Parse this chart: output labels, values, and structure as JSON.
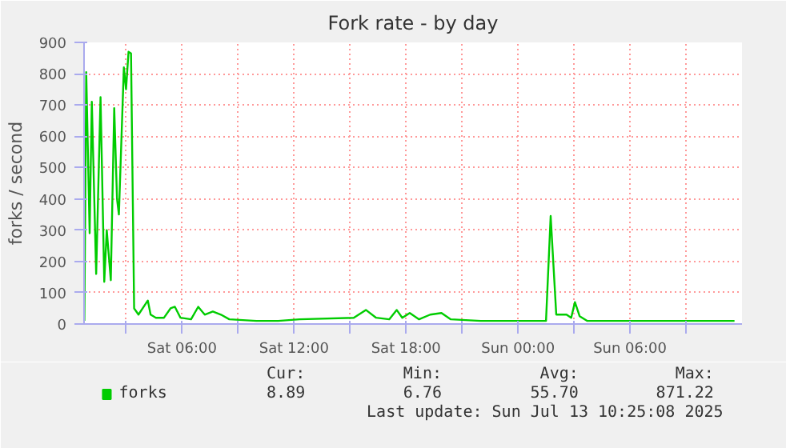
{
  "chart_data": {
    "type": "line",
    "title": "Fork rate - by day",
    "ylabel": "forks / second",
    "x": [
      "2025-07-12T00:46",
      "2025-07-12T00:52",
      "2025-07-12T01:03",
      "2025-07-12T01:10",
      "2025-07-12T01:24",
      "2025-07-12T01:38",
      "2025-07-12T01:50",
      "2025-07-12T01:58",
      "2025-07-12T02:11",
      "2025-07-12T02:22",
      "2025-07-12T02:31",
      "2025-07-12T02:37",
      "2025-07-12T02:53",
      "2025-07-12T03:00",
      "2025-07-12T03:08",
      "2025-07-12T03:16",
      "2025-07-12T03:26",
      "2025-07-12T03:40",
      "2025-07-12T04:10",
      "2025-07-12T04:19",
      "2025-07-12T04:36",
      "2025-07-12T05:02",
      "2025-07-12T05:23",
      "2025-07-12T05:37",
      "2025-07-12T05:55",
      "2025-07-12T06:29",
      "2025-07-12T06:52",
      "2025-07-12T07:13",
      "2025-07-12T07:39",
      "2025-07-12T08:05",
      "2025-07-12T08:32",
      "2025-07-12T09:59",
      "2025-07-12T11:09",
      "2025-07-12T12:18",
      "2025-07-12T15:12",
      "2025-07-12T15:51",
      "2025-07-12T16:24",
      "2025-07-12T17:06",
      "2025-07-12T17:30",
      "2025-07-12T17:48",
      "2025-07-12T18:12",
      "2025-07-12T18:42",
      "2025-07-12T19:18",
      "2025-07-12T19:54",
      "2025-07-12T20:24",
      "2025-07-12T22:00",
      "2025-07-12T23:24",
      "2025-07-13T01:06",
      "2025-07-13T01:30",
      "2025-07-13T01:45",
      "2025-07-13T02:03",
      "2025-07-13T02:36",
      "2025-07-13T02:51",
      "2025-07-13T03:03",
      "2025-07-13T03:18",
      "2025-07-13T03:42",
      "2025-07-13T05:12",
      "2025-07-13T08:06",
      "2025-07-13T10:06",
      "2025-07-13T11:24",
      "2025-07-13T11:36"
    ],
    "series": [
      {
        "name": "forks",
        "color": "#00cc00",
        "values": [
          10,
          805,
          290,
          710,
          160,
          725,
          135,
          300,
          140,
          690,
          400,
          350,
          820,
          750,
          870,
          865,
          50,
          30,
          75,
          30,
          20,
          20,
          50,
          55,
          20,
          15,
          55,
          30,
          40,
          30,
          15,
          10,
          10,
          15,
          20,
          45,
          20,
          15,
          45,
          20,
          35,
          15,
          30,
          35,
          15,
          10,
          10,
          10,
          10,
          345,
          30,
          30,
          20,
          70,
          25,
          10,
          10,
          10,
          10,
          10,
          10
        ]
      }
    ],
    "xlim": [
      "2025-07-12T00:45",
      "2025-07-13T12:00"
    ],
    "xticks": [
      {
        "value": "2025-07-12T03:00",
        "label": null
      },
      {
        "value": "2025-07-12T06:00",
        "label": "Sat 06:00"
      },
      {
        "value": "2025-07-12T09:00",
        "label": null
      },
      {
        "value": "2025-07-12T12:00",
        "label": "Sat 12:00"
      },
      {
        "value": "2025-07-12T15:00",
        "label": null
      },
      {
        "value": "2025-07-12T18:00",
        "label": "Sat 18:00"
      },
      {
        "value": "2025-07-12T21:00",
        "label": null
      },
      {
        "value": "2025-07-13T00:00",
        "label": "Sun 00:00"
      },
      {
        "value": "2025-07-13T03:00",
        "label": null
      },
      {
        "value": "2025-07-13T06:00",
        "label": "Sun 06:00"
      },
      {
        "value": "2025-07-13T09:00",
        "label": null
      }
    ],
    "ylim": [
      0,
      900
    ],
    "yticks": [
      0,
      100,
      200,
      300,
      400,
      500,
      600,
      700,
      800,
      900
    ],
    "grid": true,
    "legend": "bottom",
    "annotations": [
      "Cur:",
      "Min:",
      "Avg:",
      "Max:",
      "8.89",
      "6.76",
      "55.70",
      "871.22",
      "Last update: Sun Jul 13 10:25:08 2025"
    ]
  }
}
